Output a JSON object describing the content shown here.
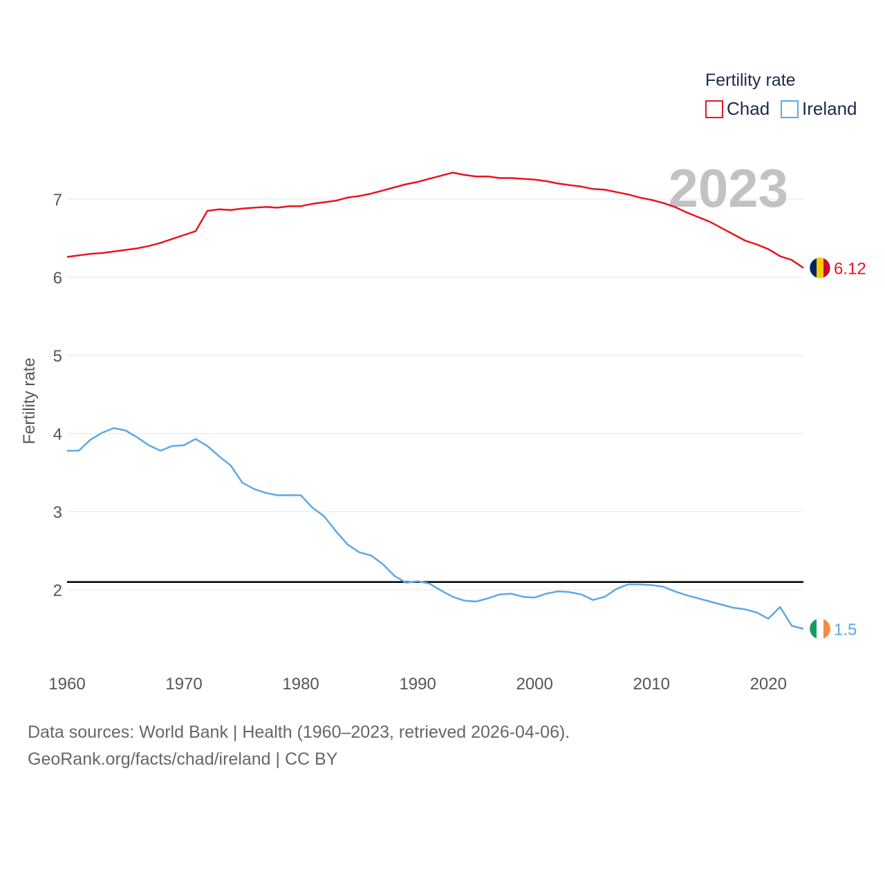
{
  "chart_data": {
    "type": "line",
    "ylabel": "Fertility rate",
    "xlabel": "",
    "xlim": [
      1960,
      2023
    ],
    "ylim": [
      1,
      7.6
    ],
    "x_ticks": [
      1960,
      1970,
      1980,
      1990,
      2000,
      2010,
      2020
    ],
    "y_ticks": [
      2,
      3,
      4,
      5,
      6,
      7
    ],
    "watermark": "2023",
    "legend": {
      "title": "Fertility rate",
      "position": "top-right"
    },
    "reference_line": {
      "value": 2.1
    },
    "x": [
      1960,
      1961,
      1962,
      1963,
      1964,
      1965,
      1966,
      1967,
      1968,
      1969,
      1970,
      1971,
      1972,
      1973,
      1974,
      1975,
      1976,
      1977,
      1978,
      1979,
      1980,
      1981,
      1982,
      1983,
      1984,
      1985,
      1986,
      1987,
      1988,
      1989,
      1990,
      1991,
      1992,
      1993,
      1994,
      1995,
      1996,
      1997,
      1998,
      1999,
      2000,
      2001,
      2002,
      2003,
      2004,
      2005,
      2006,
      2007,
      2008,
      2009,
      2010,
      2011,
      2012,
      2013,
      2014,
      2015,
      2016,
      2017,
      2018,
      2019,
      2020,
      2021,
      2022,
      2023
    ],
    "series": [
      {
        "name": "Chad",
        "color": "#e8141e",
        "end_label": "6.12",
        "flag": "chad-flag",
        "values": [
          6.26,
          6.28,
          6.3,
          6.31,
          6.33,
          6.35,
          6.37,
          6.4,
          6.44,
          6.49,
          6.54,
          6.59,
          6.85,
          6.87,
          6.86,
          6.88,
          6.89,
          6.9,
          6.89,
          6.91,
          6.91,
          6.94,
          6.96,
          6.98,
          7.02,
          7.04,
          7.07,
          7.11,
          7.15,
          7.19,
          7.22,
          7.26,
          7.3,
          7.34,
          7.31,
          7.29,
          7.29,
          7.27,
          7.27,
          7.26,
          7.25,
          7.23,
          7.2,
          7.18,
          7.16,
          7.13,
          7.12,
          7.09,
          7.06,
          7.02,
          6.99,
          6.95,
          6.9,
          6.83,
          6.77,
          6.71,
          6.63,
          6.55,
          6.47,
          6.42,
          6.36,
          6.27,
          6.22,
          6.12
        ]
      },
      {
        "name": "Ireland",
        "color": "#5ca8e6",
        "end_label": "1.5",
        "flag": "ireland-flag",
        "values": [
          3.78,
          3.78,
          3.92,
          4.01,
          4.07,
          4.04,
          3.95,
          3.85,
          3.78,
          3.84,
          3.85,
          3.93,
          3.84,
          3.71,
          3.59,
          3.37,
          3.29,
          3.24,
          3.21,
          3.21,
          3.21,
          3.05,
          2.94,
          2.75,
          2.58,
          2.48,
          2.44,
          2.33,
          2.18,
          2.09,
          2.11,
          2.08,
          1.99,
          1.91,
          1.86,
          1.85,
          1.89,
          1.94,
          1.95,
          1.91,
          1.9,
          1.95,
          1.98,
          1.97,
          1.94,
          1.87,
          1.91,
          2.01,
          2.07,
          2.07,
          2.06,
          2.04,
          1.98,
          1.93,
          1.89,
          1.85,
          1.81,
          1.77,
          1.75,
          1.71,
          1.63,
          1.78,
          1.54,
          1.5
        ]
      }
    ]
  },
  "footer": {
    "source_line": "Data sources: World Bank | Health (1960–2023, retrieved 2026-04-06).",
    "credit_line": "GeoRank.org/facts/chad/ireland | CC BY"
  }
}
